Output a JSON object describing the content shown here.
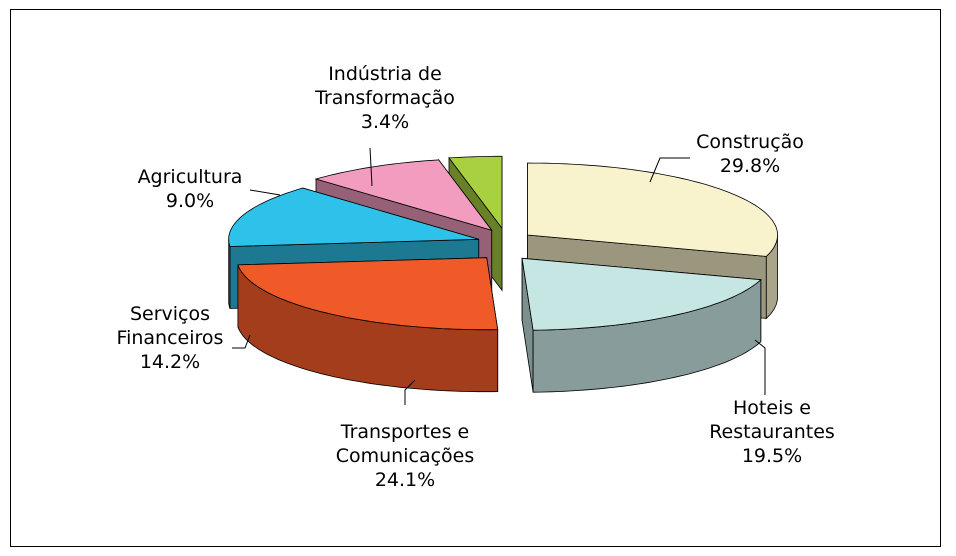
{
  "chart_data": {
    "type": "pie3d",
    "categories": [
      "Construção",
      "Hoteis e Restaurantes",
      "Transportes e Comunicações",
      "Serviços Financeiros",
      "Agricultura",
      "Indústria de Transformação"
    ],
    "values": [
      29.8,
      19.5,
      24.1,
      14.2,
      9.0,
      3.4
    ],
    "value_labels": [
      "29.8%",
      "19.5%",
      "24.1%",
      "14.2%",
      "9.0%",
      "3.4%"
    ],
    "colors": [
      "#f8f3cc",
      "#c6e6e4",
      "#f05a28",
      "#2ec2ea",
      "#f29cc0",
      "#a8d040"
    ]
  }
}
